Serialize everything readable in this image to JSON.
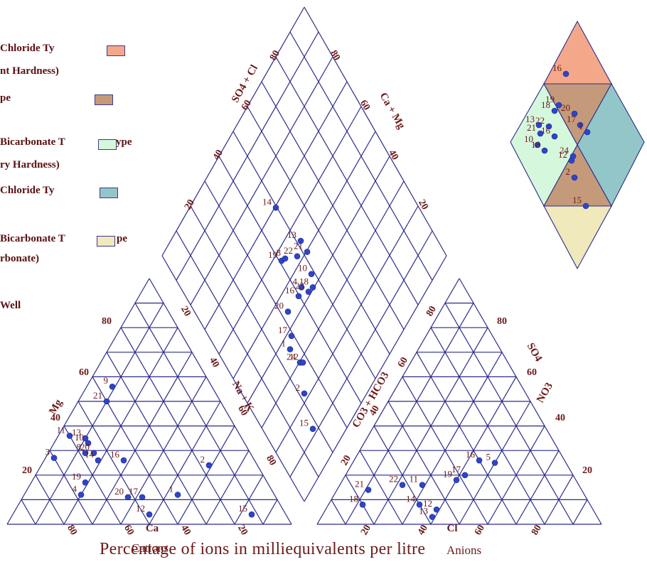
{
  "legend": {
    "items": [
      {
        "label_line1": "Chloride Ty",
        "label_line2": "nt Hardness)",
        "color": "#f4a88a"
      },
      {
        "label_line1": "pe",
        "label_line2": "",
        "color": "#c59a7a"
      },
      {
        "label_line1": "Bicarbonate T",
        "label_line1b": "ype",
        "label_line2": "ry Hardness)",
        "color": "#d5f7dc"
      },
      {
        "label_line1": "Chloride Ty",
        "label_line2": "",
        "color": "#93c6c9"
      },
      {
        "label_line1": "Bicarbonate T",
        "label_line1b": "pe",
        "label_line2": "rbonate)",
        "color": "#efe9bc"
      }
    ],
    "well_label": "Well"
  },
  "titles": {
    "x_title": "Percentage of ions in milliequivalents per litre",
    "cations": "Cations",
    "anions": "Anions"
  },
  "axis_labels": {
    "mg": "Mg",
    "na_k": "Na + K",
    "ca": "Ca",
    "cl": "Cl",
    "so4": "SO4",
    "co3_hco3": "CO3 + HCO3",
    "so4_cl": "SO4 + Cl",
    "ca_mg": "Ca + Mg",
    "no3": "NO3"
  },
  "ticks": {
    "cation_left": [
      "80",
      "60",
      "40",
      "20"
    ],
    "cation_bottom": [
      "80",
      "60",
      "40",
      "20"
    ],
    "cation_right": [
      "20",
      "40",
      "60",
      "80"
    ],
    "anion_left": [
      "20",
      "40",
      "60",
      "80"
    ],
    "anion_right": [
      "80",
      "60",
      "40",
      "20"
    ],
    "anion_bottom": [
      "20",
      "40",
      "60",
      "80"
    ],
    "diamond_left": [
      "80",
      "60",
      "40",
      "20"
    ],
    "diamond_right": [
      "80",
      "60",
      "40",
      "20"
    ]
  },
  "colors": {
    "grid": "#2b2b8a",
    "point": "#2f45c8",
    "text": "#6b1a1a"
  },
  "chart_data": {
    "type": "scatter",
    "title": "",
    "xlabel": "Percentage of ions in milliequivalents per litre",
    "ylabel": "",
    "grid": true,
    "legend_position": "left",
    "cations": {
      "axes": [
        "Ca",
        "Mg",
        "Na + K"
      ],
      "points": [
        {
          "id": "9",
          "Ca": 35,
          "Mg": 56,
          "NaK": 9
        },
        {
          "id": "21",
          "Ca": 40,
          "Mg": 50,
          "NaK": 10
        },
        {
          "id": "11",
          "Ca": 60,
          "Mg": 36,
          "NaK": 4
        },
        {
          "id": "13",
          "Ca": 55,
          "Mg": 35,
          "NaK": 10
        },
        {
          "id": "10",
          "Ca": 55,
          "Mg": 33,
          "NaK": 12
        },
        {
          "id": "8",
          "Ca": 58,
          "Mg": 29,
          "NaK": 13
        },
        {
          "id": "20",
          "Ca": 55,
          "Mg": 29,
          "NaK": 16
        },
        {
          "id": "3",
          "Ca": 70,
          "Mg": 27,
          "NaK": 3
        },
        {
          "id": "14",
          "Ca": 55,
          "Mg": 26,
          "NaK": 19
        },
        {
          "id": "16",
          "Ca": 46,
          "Mg": 26,
          "NaK": 28
        },
        {
          "id": "19",
          "Ca": 64,
          "Mg": 17,
          "NaK": 19
        },
        {
          "id": "4",
          "Ca": 68,
          "Mg": 12,
          "NaK": 20
        },
        {
          "id": "20b",
          "Ca": 52,
          "Mg": 11,
          "NaK": 37
        },
        {
          "id": "17",
          "Ca": 47,
          "Mg": 11,
          "NaK": 42
        },
        {
          "id": "1",
          "Ca": 34,
          "Mg": 12,
          "NaK": 54
        },
        {
          "id": "12",
          "Ca": 48,
          "Mg": 4,
          "NaK": 48
        },
        {
          "id": "2",
          "Ca": 17,
          "Mg": 24,
          "NaK": 59
        },
        {
          "id": "15",
          "Ca": 12,
          "Mg": 4,
          "NaK": 84
        }
      ]
    },
    "anions": {
      "axes": [
        "CO3 + HCO3",
        "SO4",
        "Cl"
      ],
      "points": [
        {
          "id": "16",
          "HCO3": 30,
          "SO4": 26,
          "Cl": 44
        },
        {
          "id": "5",
          "HCO3": 25,
          "SO4": 25,
          "Cl": 50
        },
        {
          "id": "17",
          "HCO3": 38,
          "SO4": 20,
          "Cl": 42
        },
        {
          "id": "19",
          "HCO3": 42,
          "SO4": 18,
          "Cl": 40
        },
        {
          "id": "11",
          "HCO3": 55,
          "SO4": 16,
          "Cl": 29
        },
        {
          "id": "22",
          "HCO3": 62,
          "SO4": 16,
          "Cl": 22
        },
        {
          "id": "21",
          "HCO3": 75,
          "SO4": 14,
          "Cl": 11
        },
        {
          "id": "18",
          "HCO3": 80,
          "SO4": 8,
          "Cl": 12
        },
        {
          "id": "14",
          "HCO3": 60,
          "SO4": 8,
          "Cl": 32
        },
        {
          "id": "12",
          "HCO3": 55,
          "SO4": 6,
          "Cl": 39
        },
        {
          "id": "13",
          "HCO3": 58,
          "SO4": 3,
          "Cl": 39
        }
      ]
    },
    "diamond": {
      "axes": [
        "SO4 + Cl",
        "Ca + Mg"
      ],
      "points": [
        {
          "id": "14",
          "SO4Cl": 80,
          "CaMg": 20
        },
        {
          "id": "19",
          "SO4Cl": 64,
          "CaMg": 12
        },
        {
          "id": "8",
          "SO4Cl": 62,
          "CaMg": 15
        },
        {
          "id": "20",
          "SO4Cl": 48,
          "CaMg": 5
        },
        {
          "id": "13",
          "SO4Cl": 55,
          "CaMg": 30
        },
        {
          "id": "22",
          "SO4Cl": 54,
          "CaMg": 24
        },
        {
          "id": "21",
          "SO4Cl": 48,
          "CaMg": 32
        },
        {
          "id": "4",
          "SO4Cl": 44,
          "CaMg": 20
        },
        {
          "id": "16",
          "SO4Cl": 44,
          "CaMg": 16
        },
        {
          "id": "17",
          "SO4Cl": 40,
          "CaMg": 2
        },
        {
          "id": "1",
          "SO4Cl": 38,
          "CaMg": -2
        },
        {
          "id": "10",
          "SO4Cl": 40,
          "CaMg": 30
        },
        {
          "id": "23",
          "SO4Cl": 38,
          "CaMg": 24
        },
        {
          "id": "18",
          "SO4Cl": 36,
          "CaMg": 28
        },
        {
          "id": "24",
          "SO4Cl": 28,
          "CaMg": 2
        },
        {
          "id": "12",
          "SO4Cl": 26,
          "CaMg": 4
        },
        {
          "id": "2",
          "SO4Cl": 18,
          "CaMg": -2
        },
        {
          "id": "15",
          "SO4Cl": 4,
          "CaMg": -4
        }
      ]
    },
    "mini_diamond": {
      "points": [
        {
          "id": "16"
        },
        {
          "id": "19"
        },
        {
          "id": "18"
        },
        {
          "id": "20"
        },
        {
          "id": "17"
        },
        {
          "id": "1"
        },
        {
          "id": "13"
        },
        {
          "id": "22"
        },
        {
          "id": "21"
        },
        {
          "id": "16b"
        },
        {
          "id": "10"
        },
        {
          "id": "18b"
        },
        {
          "id": "24"
        },
        {
          "id": "12"
        },
        {
          "id": "2"
        },
        {
          "id": "15"
        }
      ]
    }
  }
}
